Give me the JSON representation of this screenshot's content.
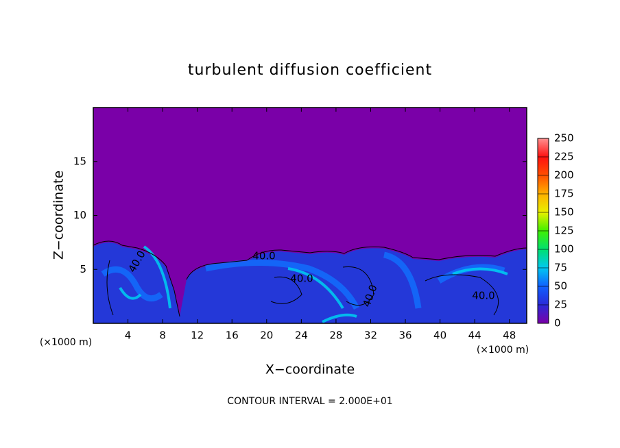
{
  "chart_data": {
    "type": "contour",
    "title": "turbulent diffusion coefficient",
    "x_label": "X−coordinate",
    "y_label": "Z−coordinate",
    "x_unit_labels": [
      "(×1000 m)",
      "(×1000 m)"
    ],
    "footer": "CONTOUR INTERVAL = 2.000E+01",
    "contour_labels": [
      "40.0",
      "40.0",
      "40.0",
      "40.0",
      "40.0"
    ],
    "xlim": [
      0,
      50
    ],
    "xticks": [
      4,
      8,
      12,
      16,
      20,
      24,
      28,
      32,
      36,
      40,
      44,
      48
    ],
    "ylim": [
      0,
      20
    ],
    "yticks": [
      5,
      10,
      15
    ],
    "colorbar": {
      "lim": [
        0,
        250
      ],
      "ticks": [
        0,
        25,
        50,
        75,
        100,
        125,
        150,
        175,
        200,
        225,
        250
      ],
      "colors": [
        "#7a00a8",
        "#2a2ad8",
        "#1060ff",
        "#00c8f0",
        "#00e070",
        "#40f000",
        "#e8f000",
        "#ffb000",
        "#ff5000",
        "#ff1010",
        "#ff9090"
      ]
    }
  }
}
